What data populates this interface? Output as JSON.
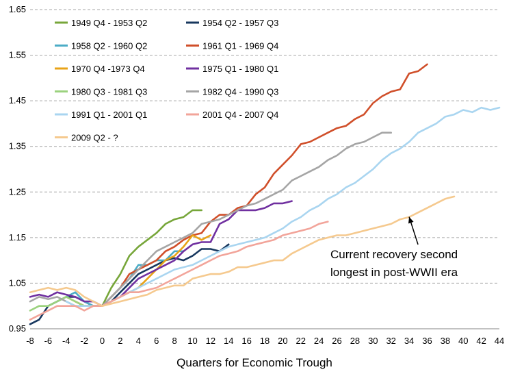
{
  "chart_data": {
    "type": "line",
    "title": "",
    "xlabel": "Quarters for Economic Trough",
    "ylabel": "",
    "xlim": [
      -8,
      44
    ],
    "ylim": [
      0.95,
      1.65
    ],
    "xticks": [
      -8,
      -6,
      -4,
      -2,
      0,
      2,
      4,
      6,
      8,
      10,
      12,
      14,
      16,
      18,
      20,
      22,
      24,
      26,
      28,
      30,
      32,
      34,
      36,
      38,
      40,
      42,
      44
    ],
    "yticks": [
      0.95,
      1.05,
      1.15,
      1.25,
      1.35,
      1.45,
      1.55,
      1.65
    ],
    "ytick_labels": [
      "0.95",
      "1.05",
      "1.15",
      "1.25",
      "1.35",
      "1.45",
      "1.55",
      "1.65"
    ],
    "grid": "horizontal dashed",
    "legend_position": "top-left",
    "annotation": {
      "lines": [
        "Current recovery second",
        "longest in post-WWII era"
      ],
      "arrow_target": [
        34,
        1.2
      ]
    },
    "series": [
      {
        "name": "1949 Q4 - 1953 Q2",
        "color": "#77a63a",
        "x": [
          0,
          1,
          2,
          3,
          4,
          5,
          6,
          7,
          8,
          9,
          10,
          11
        ],
        "y": [
          1.0,
          1.04,
          1.07,
          1.11,
          1.13,
          1.145,
          1.16,
          1.18,
          1.19,
          1.195,
          1.21,
          1.21
        ]
      },
      {
        "name": "1954 Q2 - 1957 Q3",
        "color": "#17375e",
        "x": [
          -8,
          -7,
          -6,
          -5,
          -4,
          -3,
          -2,
          -1,
          0,
          1,
          2,
          3,
          4,
          5,
          6,
          7,
          8,
          9,
          10,
          11,
          12,
          13,
          14
        ],
        "y": [
          0.96,
          0.97,
          1.0,
          1.01,
          1.02,
          1.02,
          1.01,
          1.0,
          1.0,
          1.01,
          1.03,
          1.05,
          1.07,
          1.08,
          1.09,
          1.1,
          1.105,
          1.1,
          1.11,
          1.125,
          1.125,
          1.12,
          1.135
        ]
      },
      {
        "name": "1958 Q2 - 1960 Q2",
        "color": "#4bacc6",
        "x": [
          -4,
          -3,
          -2,
          -1,
          0,
          1,
          2,
          3,
          4,
          5,
          6,
          7,
          8,
          9
        ],
        "y": [
          1.02,
          1.03,
          1.01,
          1.0,
          1.0,
          1.02,
          1.04,
          1.06,
          1.09,
          1.09,
          1.1,
          1.1,
          1.12,
          1.12
        ]
      },
      {
        "name": "1961 Q1 - 1969 Q4",
        "color": "#d04f2a",
        "x": [
          -3,
          -2,
          -1,
          0,
          1,
          2,
          3,
          4,
          5,
          6,
          7,
          8,
          9,
          10,
          11,
          12,
          13,
          14,
          15,
          16,
          17,
          18,
          19,
          20,
          21,
          22,
          23,
          24,
          25,
          26,
          27,
          28,
          29,
          30,
          31,
          32,
          33,
          34,
          35,
          36
        ],
        "y": [
          1.01,
          1.0,
          1.0,
          1.0,
          1.02,
          1.04,
          1.07,
          1.08,
          1.09,
          1.1,
          1.12,
          1.13,
          1.145,
          1.155,
          1.16,
          1.185,
          1.2,
          1.2,
          1.215,
          1.22,
          1.245,
          1.26,
          1.29,
          1.31,
          1.33,
          1.355,
          1.36,
          1.37,
          1.38,
          1.39,
          1.395,
          1.41,
          1.42,
          1.445,
          1.46,
          1.47,
          1.475,
          1.51,
          1.515,
          1.53
        ]
      },
      {
        "name": "1970 Q4 -1973 Q4",
        "color": "#e8a317",
        "x": [
          -4,
          -3,
          -2,
          -1,
          0,
          1,
          2,
          3,
          4,
          5,
          6,
          7,
          8,
          9,
          10,
          11,
          12
        ],
        "y": [
          1.02,
          1.01,
          1.0,
          1.0,
          1.0,
          1.01,
          1.02,
          1.03,
          1.04,
          1.06,
          1.08,
          1.1,
          1.11,
          1.13,
          1.155,
          1.145,
          1.155
        ]
      },
      {
        "name": "1975 Q1 - 1980 Q1",
        "color": "#7030a0",
        "x": [
          -8,
          -7,
          -6,
          -5,
          -4,
          -3,
          -2,
          -1,
          0,
          1,
          2,
          3,
          4,
          5,
          6,
          7,
          8,
          9,
          10,
          11,
          12,
          13,
          14,
          15,
          16,
          17,
          18,
          19,
          20,
          21
        ],
        "y": [
          1.02,
          1.025,
          1.02,
          1.03,
          1.025,
          1.02,
          1.01,
          1.01,
          1.0,
          1.01,
          1.02,
          1.04,
          1.06,
          1.07,
          1.08,
          1.09,
          1.1,
          1.12,
          1.135,
          1.14,
          1.14,
          1.18,
          1.19,
          1.21,
          1.21,
          1.21,
          1.215,
          1.225,
          1.225,
          1.23
        ]
      },
      {
        "name": "1980 Q3 - 1981 Q3",
        "color": "#9bd27e",
        "x": [
          -8,
          -7,
          -6,
          -5,
          -4,
          -3,
          -2,
          -1,
          0,
          1,
          2,
          3,
          4
        ],
        "y": [
          0.99,
          1.0,
          1.0,
          1.01,
          1.02,
          1.01,
          1.0,
          1.0,
          1.0,
          1.01,
          1.02,
          1.03,
          1.03
        ]
      },
      {
        "name": "1982 Q4 - 1990 Q3",
        "color": "#a5a5a5",
        "x": [
          -8,
          -7,
          -6,
          -5,
          -4,
          -3,
          -2,
          -1,
          0,
          1,
          2,
          3,
          4,
          5,
          6,
          7,
          8,
          9,
          10,
          11,
          12,
          13,
          14,
          15,
          16,
          17,
          18,
          19,
          20,
          21,
          22,
          23,
          24,
          25,
          26,
          27,
          28,
          29,
          30,
          31,
          32
        ],
        "y": [
          1.01,
          1.02,
          1.015,
          1.02,
          1.01,
          1.0,
          1.0,
          1.0,
          1.0,
          1.02,
          1.04,
          1.06,
          1.08,
          1.1,
          1.12,
          1.13,
          1.14,
          1.15,
          1.16,
          1.18,
          1.185,
          1.19,
          1.2,
          1.21,
          1.22,
          1.225,
          1.235,
          1.245,
          1.255,
          1.275,
          1.285,
          1.295,
          1.305,
          1.32,
          1.33,
          1.345,
          1.355,
          1.36,
          1.37,
          1.38,
          1.38
        ]
      },
      {
        "name": "1991 Q1 - 2001 Q1",
        "color": "#a9d5f0",
        "x": [
          -4,
          -3,
          -2,
          -1,
          0,
          1,
          2,
          3,
          4,
          5,
          6,
          7,
          8,
          9,
          10,
          11,
          12,
          13,
          14,
          15,
          16,
          17,
          18,
          19,
          20,
          21,
          22,
          23,
          24,
          25,
          26,
          27,
          28,
          29,
          30,
          31,
          32,
          33,
          34,
          35,
          36,
          37,
          38,
          39,
          40,
          41,
          42,
          43,
          44
        ],
        "y": [
          1.01,
          1.0,
          1.0,
          1.0,
          1.0,
          1.01,
          1.02,
          1.03,
          1.04,
          1.05,
          1.06,
          1.07,
          1.08,
          1.085,
          1.09,
          1.1,
          1.11,
          1.12,
          1.13,
          1.135,
          1.14,
          1.145,
          1.15,
          1.16,
          1.17,
          1.185,
          1.195,
          1.21,
          1.22,
          1.235,
          1.245,
          1.26,
          1.27,
          1.285,
          1.3,
          1.32,
          1.335,
          1.345,
          1.36,
          1.38,
          1.39,
          1.4,
          1.415,
          1.42,
          1.43,
          1.425,
          1.435,
          1.43,
          1.435
        ]
      },
      {
        "name": "2001 Q4 - 2007 Q4",
        "color": "#f2a49a",
        "x": [
          -8,
          -7,
          -6,
          -5,
          -4,
          -3,
          -2,
          -1,
          0,
          1,
          2,
          3,
          4,
          5,
          6,
          7,
          8,
          9,
          10,
          11,
          12,
          13,
          14,
          15,
          16,
          17,
          18,
          19,
          20,
          21,
          22,
          23,
          24,
          25
        ],
        "y": [
          0.97,
          0.98,
          0.99,
          1.0,
          1.0,
          1.0,
          0.99,
          1.0,
          1.0,
          1.01,
          1.02,
          1.03,
          1.03,
          1.035,
          1.04,
          1.05,
          1.06,
          1.07,
          1.08,
          1.09,
          1.1,
          1.11,
          1.115,
          1.12,
          1.13,
          1.135,
          1.14,
          1.145,
          1.155,
          1.16,
          1.165,
          1.17,
          1.18,
          1.185
        ]
      },
      {
        "name": "2009 Q2 - ?",
        "color": "#f5c98e",
        "x": [
          -8,
          -7,
          -6,
          -5,
          -4,
          -3,
          -2,
          -1,
          0,
          1,
          2,
          3,
          4,
          5,
          6,
          7,
          8,
          9,
          10,
          11,
          12,
          13,
          14,
          15,
          16,
          17,
          18,
          19,
          20,
          21,
          22,
          23,
          24,
          25,
          26,
          27,
          28,
          29,
          30,
          31,
          32,
          33,
          34,
          35,
          36,
          37,
          38,
          39
        ],
        "y": [
          1.03,
          1.035,
          1.04,
          1.035,
          1.04,
          1.035,
          1.02,
          1.01,
          1.0,
          1.005,
          1.01,
          1.015,
          1.02,
          1.025,
          1.035,
          1.04,
          1.045,
          1.045,
          1.06,
          1.065,
          1.07,
          1.07,
          1.075,
          1.085,
          1.085,
          1.09,
          1.095,
          1.1,
          1.1,
          1.115,
          1.125,
          1.135,
          1.145,
          1.15,
          1.155,
          1.155,
          1.16,
          1.165,
          1.17,
          1.175,
          1.18,
          1.19,
          1.195,
          1.205,
          1.215,
          1.225,
          1.235,
          1.24
        ]
      }
    ]
  }
}
